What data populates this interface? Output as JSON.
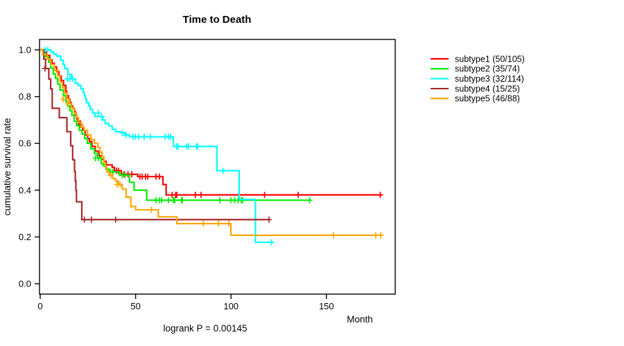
{
  "chart_data": {
    "type": "line",
    "subtype": "kaplan-meier-step",
    "title": "Time to Death",
    "xlabel": "Month",
    "ylabel": "cumulative survival rate",
    "footnote": "logrank P = 0.00145",
    "grid": false,
    "legend_position": "right-outside",
    "x_axis": {
      "min": 0,
      "max": 186,
      "ticks": [
        0,
        50,
        100,
        150
      ]
    },
    "y_axis": {
      "min": 0.0,
      "max": 1.0,
      "ticks": [
        0.0,
        0.2,
        0.4,
        0.6,
        0.8,
        1.0
      ]
    },
    "series": [
      {
        "name": "subtype1",
        "label": "subtype1 (50/105)",
        "events": 50,
        "n": 105,
        "color": "#FF0000",
        "steps": [
          [
            0,
            1.0
          ],
          [
            2,
            0.99
          ],
          [
            3.2,
            0.976
          ],
          [
            5,
            0.957
          ],
          [
            6.2,
            0.942
          ],
          [
            7.4,
            0.927
          ],
          [
            8.6,
            0.907
          ],
          [
            9.8,
            0.888
          ],
          [
            11,
            0.868
          ],
          [
            12.2,
            0.848
          ],
          [
            13.4,
            0.823
          ],
          [
            13.9,
            0.804
          ],
          [
            14.8,
            0.789
          ],
          [
            15.6,
            0.774
          ],
          [
            16.3,
            0.76
          ],
          [
            17,
            0.75
          ],
          [
            17.9,
            0.735
          ],
          [
            18.5,
            0.72
          ],
          [
            19.1,
            0.705
          ],
          [
            19.8,
            0.695
          ],
          [
            20.9,
            0.68
          ],
          [
            21.6,
            0.67
          ],
          [
            22.2,
            0.656
          ],
          [
            23.5,
            0.636
          ],
          [
            24.9,
            0.62
          ],
          [
            25.8,
            0.607
          ],
          [
            27.1,
            0.587
          ],
          [
            28.8,
            0.567
          ],
          [
            30.5,
            0.547
          ],
          [
            32,
            0.532
          ],
          [
            33.4,
            0.523
          ],
          [
            34.6,
            0.508
          ],
          [
            37.7,
            0.497
          ],
          [
            38.9,
            0.483
          ],
          [
            42.5,
            0.468
          ],
          [
            51,
            0.458
          ],
          [
            64.3,
            0.424
          ],
          [
            66,
            0.38
          ],
          [
            179.2,
            0.38
          ]
        ],
        "censors": [
          [
            20,
            0.695
          ],
          [
            21,
            0.68
          ],
          [
            30.9,
            0.547
          ],
          [
            40,
            0.483
          ],
          [
            41,
            0.483
          ],
          [
            44,
            0.468
          ],
          [
            46,
            0.468
          ],
          [
            48,
            0.468
          ],
          [
            52.2,
            0.458
          ],
          [
            53.4,
            0.458
          ],
          [
            55.2,
            0.458
          ],
          [
            56.4,
            0.458
          ],
          [
            60.7,
            0.458
          ],
          [
            62.5,
            0.458
          ],
          [
            69.1,
            0.38
          ],
          [
            71,
            0.38
          ],
          [
            71.6,
            0.38
          ],
          [
            81.3,
            0.38
          ],
          [
            84.3,
            0.38
          ],
          [
            117.6,
            0.38
          ],
          [
            135.2,
            0.38
          ],
          [
            178.2,
            0.38
          ]
        ]
      },
      {
        "name": "subtype2",
        "label": "subtype2 (35/74)",
        "events": 35,
        "n": 74,
        "color": "#00EE00",
        "steps": [
          [
            0,
            1.0
          ],
          [
            1.5,
            0.985
          ],
          [
            2.5,
            0.971
          ],
          [
            4.4,
            0.947
          ],
          [
            5.5,
            0.922
          ],
          [
            6.8,
            0.897
          ],
          [
            8,
            0.878
          ],
          [
            9.2,
            0.853
          ],
          [
            10.4,
            0.828
          ],
          [
            12.2,
            0.804
          ],
          [
            13.4,
            0.779
          ],
          [
            14.2,
            0.76
          ],
          [
            15.5,
            0.74
          ],
          [
            16.6,
            0.72
          ],
          [
            17.8,
            0.695
          ],
          [
            19,
            0.676
          ],
          [
            20.5,
            0.656
          ],
          [
            21.9,
            0.64
          ],
          [
            23.3,
            0.62
          ],
          [
            24.7,
            0.6
          ],
          [
            26.6,
            0.577
          ],
          [
            28.4,
            0.557
          ],
          [
            30.2,
            0.537
          ],
          [
            32,
            0.513
          ],
          [
            33.2,
            0.503
          ],
          [
            34.4,
            0.49
          ],
          [
            36,
            0.478
          ],
          [
            41.5,
            0.464
          ],
          [
            46.8,
            0.434
          ],
          [
            49.2,
            0.4
          ],
          [
            55.8,
            0.357
          ],
          [
            141.2,
            0.357
          ]
        ],
        "censors": [
          [
            29,
            0.537
          ],
          [
            30.6,
            0.537
          ],
          [
            36.8,
            0.478
          ],
          [
            38,
            0.478
          ],
          [
            43,
            0.464
          ],
          [
            44.5,
            0.464
          ],
          [
            60.7,
            0.357
          ],
          [
            62.5,
            0.357
          ],
          [
            63.6,
            0.357
          ],
          [
            67.2,
            0.357
          ],
          [
            69.8,
            0.357
          ],
          [
            70.5,
            0.357
          ],
          [
            74.1,
            0.357
          ],
          [
            74.5,
            0.357
          ],
          [
            94.1,
            0.357
          ],
          [
            99.9,
            0.357
          ],
          [
            101.9,
            0.357
          ],
          [
            103.7,
            0.357
          ],
          [
            105.4,
            0.357
          ],
          [
            106.1,
            0.357
          ],
          [
            141.2,
            0.357
          ]
        ]
      },
      {
        "name": "subtype3",
        "label": "subtype3 (32/114)",
        "events": 32,
        "n": 114,
        "color": "#00FFFF",
        "steps": [
          [
            0,
            1.0
          ],
          [
            5.6,
            0.991
          ],
          [
            7,
            0.982
          ],
          [
            8.6,
            0.973
          ],
          [
            10.8,
            0.955
          ],
          [
            12,
            0.938
          ],
          [
            12.8,
            0.92
          ],
          [
            14.5,
            0.895
          ],
          [
            16.5,
            0.876
          ],
          [
            18.4,
            0.857
          ],
          [
            19.8,
            0.848
          ],
          [
            21.3,
            0.833
          ],
          [
            22.5,
            0.818
          ],
          [
            23.1,
            0.804
          ],
          [
            23.7,
            0.789
          ],
          [
            24.3,
            0.774
          ],
          [
            25.5,
            0.76
          ],
          [
            26.2,
            0.745
          ],
          [
            27.4,
            0.73
          ],
          [
            28.6,
            0.715
          ],
          [
            32.8,
            0.7
          ],
          [
            34,
            0.685
          ],
          [
            35.9,
            0.675
          ],
          [
            37.7,
            0.66
          ],
          [
            39.5,
            0.65
          ],
          [
            41.9,
            0.646
          ],
          [
            44.3,
            0.636
          ],
          [
            46.8,
            0.628
          ],
          [
            69.8,
            0.587
          ],
          [
            92.6,
            0.483
          ],
          [
            104.3,
            0.36
          ],
          [
            112.8,
            0.177
          ],
          [
            122.4,
            0.177
          ]
        ],
        "censors": [
          [
            2.5,
            1.0
          ],
          [
            4,
            1.0
          ],
          [
            14.2,
            0.876
          ],
          [
            15.6,
            0.876
          ],
          [
            17,
            0.876
          ],
          [
            30.4,
            0.73
          ],
          [
            32.2,
            0.715
          ],
          [
            43,
            0.646
          ],
          [
            45,
            0.636
          ],
          [
            48.6,
            0.628
          ],
          [
            49.8,
            0.628
          ],
          [
            51.6,
            0.628
          ],
          [
            54.5,
            0.628
          ],
          [
            57.8,
            0.628
          ],
          [
            65.5,
            0.628
          ],
          [
            67.3,
            0.628
          ],
          [
            68.3,
            0.628
          ],
          [
            71.6,
            0.587
          ],
          [
            72.4,
            0.587
          ],
          [
            76.8,
            0.587
          ],
          [
            77.7,
            0.587
          ],
          [
            81.9,
            0.587
          ],
          [
            82.6,
            0.587
          ],
          [
            95.8,
            0.483
          ],
          [
            121.2,
            0.177
          ]
        ]
      },
      {
        "name": "subtype4",
        "label": "subtype4 (15/25)",
        "events": 15,
        "n": 25,
        "color": "#A52A2A",
        "steps": [
          [
            0,
            1.0
          ],
          [
            1.9,
            0.96
          ],
          [
            2.8,
            0.92
          ],
          [
            4.5,
            0.875
          ],
          [
            5.5,
            0.833
          ],
          [
            6.3,
            0.75
          ],
          [
            10,
            0.71
          ],
          [
            14,
            0.65
          ],
          [
            16,
            0.59
          ],
          [
            17,
            0.53
          ],
          [
            18,
            0.48
          ],
          [
            18.4,
            0.44
          ],
          [
            18.7,
            0.4
          ],
          [
            19,
            0.35
          ],
          [
            21.8,
            0.274
          ],
          [
            119.9,
            0.274
          ]
        ],
        "censors": [
          [
            2.5,
            0.92
          ],
          [
            23.1,
            0.274
          ],
          [
            26.8,
            0.274
          ],
          [
            39.5,
            0.274
          ],
          [
            119.9,
            0.274
          ]
        ]
      },
      {
        "name": "subtype5",
        "label": "subtype5 (46/88)",
        "events": 46,
        "n": 88,
        "color": "#FFA500",
        "steps": [
          [
            0,
            1.0
          ],
          [
            1.3,
            0.98
          ],
          [
            3.7,
            0.96
          ],
          [
            5.6,
            0.937
          ],
          [
            7.4,
            0.912
          ],
          [
            9.2,
            0.888
          ],
          [
            10.4,
            0.863
          ],
          [
            11.6,
            0.838
          ],
          [
            12.8,
            0.814
          ],
          [
            14,
            0.789
          ],
          [
            15.3,
            0.77
          ],
          [
            16.5,
            0.75
          ],
          [
            17.7,
            0.73
          ],
          [
            18.9,
            0.71
          ],
          [
            20.1,
            0.69
          ],
          [
            21.5,
            0.67
          ],
          [
            23,
            0.656
          ],
          [
            24.8,
            0.636
          ],
          [
            26.6,
            0.616
          ],
          [
            28.4,
            0.6
          ],
          [
            30.2,
            0.582
          ],
          [
            31.4,
            0.562
          ],
          [
            32.4,
            0.542
          ],
          [
            33.4,
            0.518
          ],
          [
            34.2,
            0.498
          ],
          [
            35,
            0.478
          ],
          [
            36.2,
            0.464
          ],
          [
            38,
            0.449
          ],
          [
            39.5,
            0.439
          ],
          [
            41,
            0.424
          ],
          [
            43,
            0.404
          ],
          [
            45,
            0.37
          ],
          [
            47.5,
            0.33
          ],
          [
            50,
            0.316
          ],
          [
            61.9,
            0.286
          ],
          [
            71.6,
            0.257
          ],
          [
            99.9,
            0.207
          ],
          [
            178.8,
            0.207
          ]
        ],
        "censors": [
          [
            12,
            0.789
          ],
          [
            14.5,
            0.77
          ],
          [
            37,
            0.464
          ],
          [
            40.3,
            0.424
          ],
          [
            41.9,
            0.424
          ],
          [
            58.3,
            0.316
          ],
          [
            85.5,
            0.257
          ],
          [
            93.4,
            0.257
          ],
          [
            98.8,
            0.257
          ],
          [
            153.7,
            0.207
          ],
          [
            175.8,
            0.207
          ],
          [
            178.5,
            0.207
          ]
        ]
      }
    ]
  },
  "colors": {
    "background": "#FFFFFF",
    "axis": "#000000",
    "text": "#000000"
  }
}
